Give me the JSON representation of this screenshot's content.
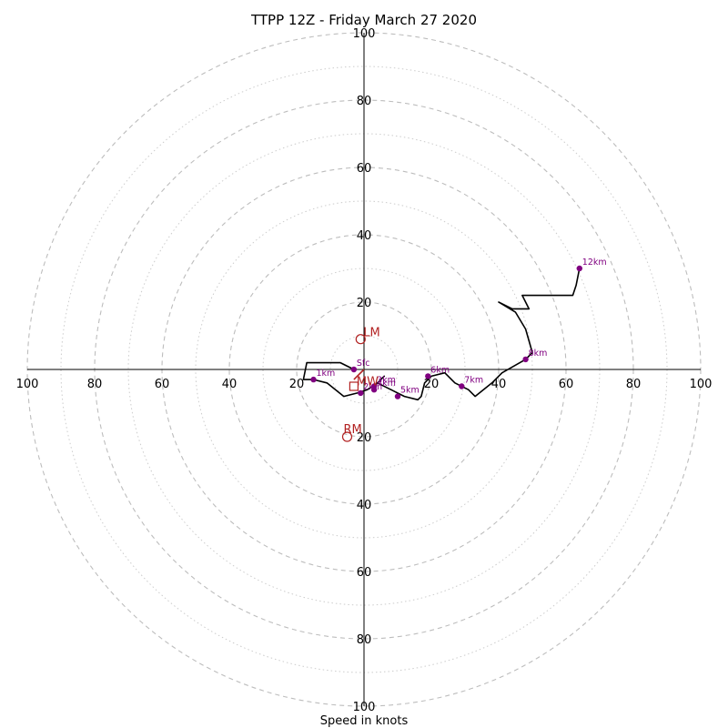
{
  "chart_data": {
    "type": "line",
    "title": "TTPP 12Z - Friday March 27 2020",
    "xlabel": "Speed in knots",
    "ylabel": "",
    "units": "knots",
    "xlim": [
      -100,
      100
    ],
    "ylim": [
      -100,
      100
    ],
    "ring_major_step": 20,
    "ring_minor_step": 10,
    "grid": true,
    "tick_labels": {
      "x_left": [
        "100",
        "80",
        "60",
        "40",
        "20"
      ],
      "x_right": [
        "20",
        "40",
        "60",
        "80",
        "100"
      ],
      "y_up": [
        "20",
        "40",
        "60",
        "80",
        "100"
      ],
      "y_down": [
        "20",
        "40",
        "60",
        "80",
        "100"
      ]
    },
    "tick_values": [
      20,
      40,
      60,
      80,
      100
    ],
    "trace": {
      "color": "#000000",
      "u": [
        -3,
        -7,
        -17,
        -18,
        -15,
        -11,
        -6,
        -2,
        1,
        4,
        6,
        4,
        8,
        12,
        16,
        17,
        18,
        20,
        24,
        27,
        31,
        33,
        38,
        41,
        48,
        50,
        48,
        45,
        40,
        44,
        49,
        47,
        55,
        62,
        63,
        64
      ],
      "v": [
        0,
        2,
        2,
        -3,
        -3,
        -4,
        -8,
        -7,
        -6,
        -4,
        -2,
        -4,
        -6,
        -8,
        -9,
        -8,
        -4,
        -2,
        -1,
        -4,
        -6,
        -8,
        -4,
        -1,
        3,
        5,
        12,
        17,
        20,
        18,
        18,
        22,
        22,
        22,
        25,
        30
      ]
    },
    "height_markers": {
      "color": "#800080",
      "points": [
        {
          "label": "Sfc",
          "u": -3,
          "v": 0
        },
        {
          "label": "1km",
          "u": -15,
          "v": -3
        },
        {
          "label": "2km",
          "u": -1,
          "v": -7
        },
        {
          "label": "3km",
          "u": 3,
          "v": -5
        },
        {
          "label": "4km",
          "u": 3,
          "v": -6
        },
        {
          "label": "5km",
          "u": 10,
          "v": -8
        },
        {
          "label": "6km",
          "u": 19,
          "v": -2
        },
        {
          "label": "7km",
          "u": 29,
          "v": -5
        },
        {
          "label": "8km",
          "u": 48,
          "v": 3
        },
        {
          "label": "12km",
          "u": 64,
          "v": 30
        }
      ]
    },
    "storm_motion": {
      "color": "#b22222",
      "bunkers_left": {
        "label": "LM",
        "u": -1,
        "v": 9
      },
      "bunkers_right": {
        "label": "RM",
        "u": -5,
        "v": -20
      },
      "mean_wind": {
        "label": "MW",
        "u": -3,
        "v": -5
      },
      "vector": {
        "u": -3,
        "v": -3
      }
    }
  }
}
